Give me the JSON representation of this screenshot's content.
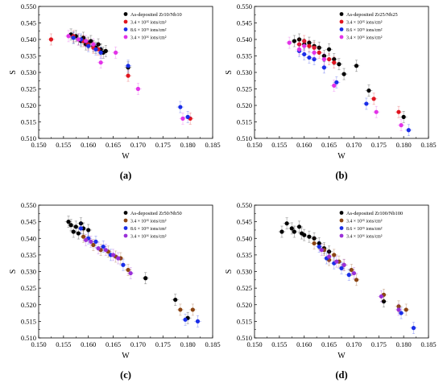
{
  "marker_colors": {
    "as": "#000000",
    "d1": "#e0141e",
    "d2": "#1a2ee8",
    "d3": "#e233e8",
    "d1_brown": "#8b4513",
    "d3_purple": "#9a30d8"
  },
  "chart_data": [
    {
      "type": "scatter",
      "panel_label": "(a)",
      "xlabel": "W",
      "ylabel": "S",
      "xlim": [
        0.15,
        0.185
      ],
      "ylim": [
        0.51,
        0.55
      ],
      "xticks": [
        "0.150",
        "0.155",
        "0.160",
        "0.165",
        "0.170",
        "0.175",
        "0.180",
        "0.185"
      ],
      "yticks": [
        "0.510",
        "0.515",
        "0.520",
        "0.525",
        "0.530",
        "0.535",
        "0.540",
        "0.545",
        "0.550"
      ],
      "grid": false,
      "legend_position": "top-right",
      "series": [
        {
          "name": "As-deposited Zr10/Nb10",
          "color": "#000000",
          "x": [
            0.1565,
            0.157,
            0.1575,
            0.158,
            0.1585,
            0.159,
            0.1595,
            0.16,
            0.1605,
            0.161,
            0.1615,
            0.162,
            0.1625,
            0.163,
            0.1635,
            0.168
          ],
          "y": [
            0.5415,
            0.5405,
            0.541,
            0.54,
            0.5395,
            0.5405,
            0.5385,
            0.539,
            0.5395,
            0.538,
            0.5375,
            0.5385,
            0.537,
            0.536,
            0.5365,
            0.5315
          ]
        },
        {
          "name": "3.4 × 10¹⁵ ions/cm²",
          "color": "#e0141e",
          "x": [
            0.1525,
            0.157,
            0.159,
            0.16,
            0.161,
            0.162,
            0.168,
            0.1805
          ],
          "y": [
            0.54,
            0.541,
            0.5395,
            0.5385,
            0.5375,
            0.537,
            0.529,
            0.516
          ]
        },
        {
          "name": "8.6 × 10¹⁵ ions/cm²",
          "color": "#1a2ee8",
          "x": [
            0.157,
            0.1585,
            0.16,
            0.1615,
            0.1625,
            0.168,
            0.1785,
            0.18
          ],
          "y": [
            0.5405,
            0.54,
            0.538,
            0.537,
            0.536,
            0.532,
            0.5195,
            0.5165
          ]
        },
        {
          "name": "3.4 × 10¹⁶ ions/cm²",
          "color": "#e233e8",
          "x": [
            0.156,
            0.158,
            0.1595,
            0.161,
            0.1625,
            0.1655,
            0.17,
            0.179
          ],
          "y": [
            0.541,
            0.54,
            0.5395,
            0.5385,
            0.533,
            0.536,
            0.525,
            0.516
          ]
        }
      ]
    },
    {
      "type": "scatter",
      "panel_label": "(b)",
      "xlabel": "W",
      "ylabel": "S",
      "xlim": [
        0.15,
        0.185
      ],
      "ylim": [
        0.51,
        0.55
      ],
      "xticks": [
        "0.150",
        "0.155",
        "0.160",
        "0.165",
        "0.170",
        "0.175",
        "0.180",
        "0.185"
      ],
      "yticks": [
        "0.510",
        "0.515",
        "0.520",
        "0.525",
        "0.530",
        "0.535",
        "0.540",
        "0.545",
        "0.550"
      ],
      "grid": false,
      "legend_position": "top-right",
      "series": [
        {
          "name": "As-deposited Zr25/Nb25",
          "color": "#000000",
          "x": [
            0.158,
            0.159,
            0.16,
            0.161,
            0.162,
            0.163,
            0.164,
            0.165,
            0.166,
            0.167,
            0.168,
            0.1705,
            0.173,
            0.18
          ],
          "y": [
            0.5395,
            0.54,
            0.5385,
            0.539,
            0.538,
            0.5375,
            0.535,
            0.537,
            0.534,
            0.5325,
            0.5295,
            0.532,
            0.5245,
            0.5165
          ]
        },
        {
          "name": "3.4 × 10¹⁵ ions/cm²",
          "color": "#e0141e",
          "x": [
            0.159,
            0.16,
            0.161,
            0.162,
            0.163,
            0.165,
            0.166,
            0.174,
            0.179
          ],
          "y": [
            0.5385,
            0.5395,
            0.538,
            0.5375,
            0.536,
            0.534,
            0.533,
            0.522,
            0.518
          ]
        },
        {
          "name": "8.6 × 10¹⁵ ions/cm²",
          "color": "#1a2ee8",
          "x": [
            0.159,
            0.16,
            0.161,
            0.162,
            0.164,
            0.1665,
            0.1725,
            0.181
          ],
          "y": [
            0.5365,
            0.5355,
            0.5345,
            0.534,
            0.5315,
            0.527,
            0.5205,
            0.5125
          ]
        },
        {
          "name": "3.4 × 10¹⁶ ions/cm²",
          "color": "#e233e8",
          "x": [
            0.157,
            0.159,
            0.16,
            0.162,
            0.164,
            0.166,
            0.1745,
            0.1795
          ],
          "y": [
            0.539,
            0.537,
            0.538,
            0.536,
            0.534,
            0.526,
            0.518,
            0.514
          ]
        }
      ]
    },
    {
      "type": "scatter",
      "panel_label": "(c)",
      "xlabel": "W",
      "ylabel": "S",
      "xlim": [
        0.15,
        0.185
      ],
      "ylim": [
        0.51,
        0.55
      ],
      "xticks": [
        "0.150",
        "0.155",
        "0.160",
        "0.165",
        "0.170",
        "0.175",
        "0.180",
        "0.185"
      ],
      "yticks": [
        "0.510",
        "0.515",
        "0.520",
        "0.525",
        "0.530",
        "0.535",
        "0.540",
        "0.545",
        "0.550"
      ],
      "grid": false,
      "legend_position": "top-right",
      "series": [
        {
          "name": "As-deposited Zr50/Nb50",
          "color": "#000000",
          "x": [
            0.156,
            0.1565,
            0.157,
            0.1575,
            0.158,
            0.1585,
            0.159,
            0.16,
            0.1715,
            0.1775,
            0.18
          ],
          "y": [
            0.545,
            0.544,
            0.542,
            0.5435,
            0.5415,
            0.5445,
            0.543,
            0.5425,
            0.528,
            0.5215,
            0.516
          ]
        },
        {
          "name": "3.4 × 10¹⁵ ions/cm²",
          "color": "#8b4513",
          "x": [
            0.159,
            0.161,
            0.1625,
            0.164,
            0.1655,
            0.1665,
            0.168,
            0.1785,
            0.181
          ],
          "y": [
            0.5405,
            0.538,
            0.5365,
            0.536,
            0.5345,
            0.534,
            0.5305,
            0.5185,
            0.5185
          ]
        },
        {
          "name": "8.6 × 10¹⁵ ions/cm²",
          "color": "#1a2ee8",
          "x": [
            0.1585,
            0.16,
            0.1615,
            0.163,
            0.1645,
            0.167,
            0.1795,
            0.182
          ],
          "y": [
            0.543,
            0.54,
            0.539,
            0.5375,
            0.535,
            0.532,
            0.5155,
            0.515
          ]
        },
        {
          "name": "3.4 × 10¹⁶ ions/cm²",
          "color": "#9a30d8",
          "x": [
            0.1595,
            0.1605,
            0.162,
            0.1635,
            0.165,
            0.166,
            0.1685
          ],
          "y": [
            0.5395,
            0.539,
            0.537,
            0.5365,
            0.535,
            0.534,
            0.5295
          ]
        }
      ]
    },
    {
      "type": "scatter",
      "panel_label": "(d)",
      "xlabel": "W",
      "ylabel": "S",
      "xlim": [
        0.15,
        0.185
      ],
      "ylim": [
        0.51,
        0.55
      ],
      "xticks": [
        "0.150",
        "0.155",
        "0.160",
        "0.165",
        "0.170",
        "0.175",
        "0.180",
        "0.185"
      ],
      "yticks": [
        "0.510",
        "0.515",
        "0.520",
        "0.525",
        "0.530",
        "0.535",
        "0.540",
        "0.545",
        "0.550"
      ],
      "grid": false,
      "legend_position": "top-right",
      "series": [
        {
          "name": "As-deposited Zr100/Nb100",
          "color": "#000000",
          "x": [
            0.1555,
            0.1565,
            0.1575,
            0.158,
            0.159,
            0.1595,
            0.16,
            0.161,
            0.162,
            0.163,
            0.164,
            0.165,
            0.176
          ],
          "y": [
            0.542,
            0.5445,
            0.543,
            0.542,
            0.5435,
            0.5415,
            0.541,
            0.5405,
            0.54,
            0.5385,
            0.537,
            0.536,
            0.521
          ]
        },
        {
          "name": "3.4 × 10¹⁵ ions/cm²",
          "color": "#8b4513",
          "x": [
            0.162,
            0.164,
            0.165,
            0.166,
            0.167,
            0.168,
            0.1695,
            0.1705,
            0.176,
            0.179,
            0.1805
          ],
          "y": [
            0.5385,
            0.5365,
            0.5335,
            0.535,
            0.533,
            0.532,
            0.5305,
            0.5275,
            0.523,
            0.5195,
            0.5185
          ]
        },
        {
          "name": "8.6 × 10¹⁵ ions/cm²",
          "color": "#1a2ee8",
          "x": [
            0.163,
            0.1645,
            0.166,
            0.1675,
            0.169,
            0.1795,
            0.182
          ],
          "y": [
            0.5375,
            0.534,
            0.5325,
            0.531,
            0.529,
            0.5175,
            0.513
          ]
        },
        {
          "name": "3.4 × 10¹⁶ ions/cm²",
          "color": "#9a30d8",
          "x": [
            0.1635,
            0.165,
            0.1665,
            0.168,
            0.17,
            0.1755,
            0.179
          ],
          "y": [
            0.5365,
            0.5345,
            0.533,
            0.532,
            0.5295,
            0.5225,
            0.5185
          ]
        }
      ]
    }
  ]
}
